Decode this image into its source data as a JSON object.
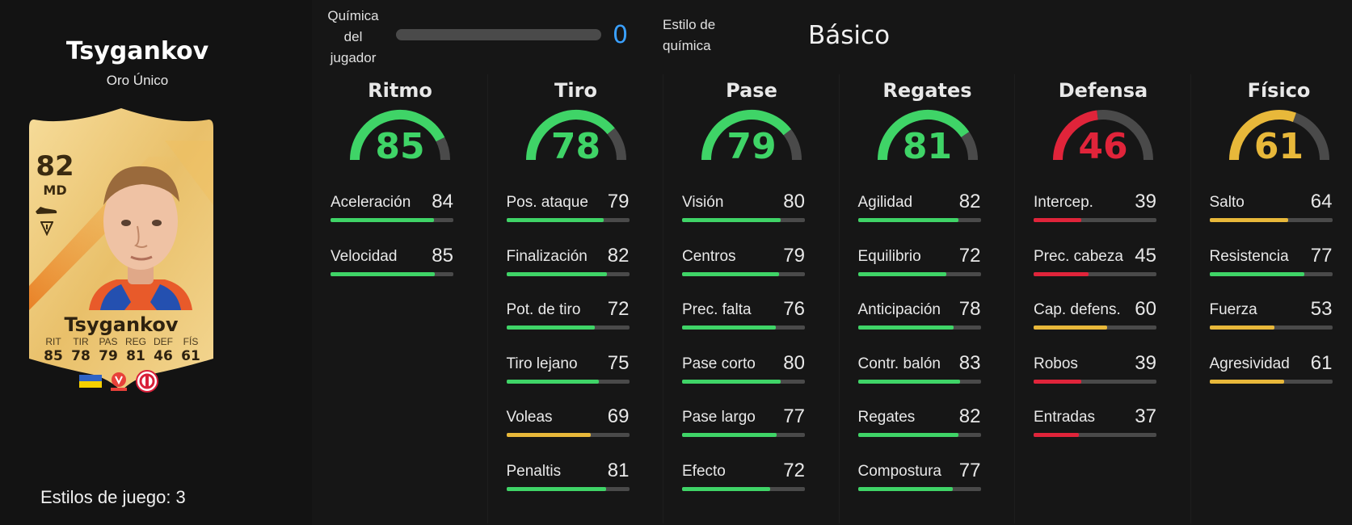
{
  "player": {
    "name": "Tsygankov",
    "rarity": "Oro Único",
    "rating": "82",
    "position": "MD",
    "card_name": "Tsygankov",
    "card_stats": [
      {
        "label": "RIT",
        "value": "85"
      },
      {
        "label": "TIR",
        "value": "78"
      },
      {
        "label": "PAS",
        "value": "79"
      },
      {
        "label": "REG",
        "value": "81"
      },
      {
        "label": "DEF",
        "value": "46"
      },
      {
        "label": "FÍS",
        "value": "61"
      }
    ],
    "playstyles_label": "Estilos de juego: 3"
  },
  "chemistry": {
    "label_lines": [
      "Química",
      "del",
      "jugador"
    ],
    "value": "0",
    "level": 0,
    "style_label_lines": [
      "Estilo de",
      "química"
    ],
    "style_value": "Básico",
    "value_color": "#3aa0ff"
  },
  "colors": {
    "green": "#3fd467",
    "red": "#e0243a",
    "yellow": "#e8b83a",
    "track": "#4a4a4a"
  },
  "categories": [
    {
      "title": "Ritmo",
      "value": 85,
      "color": "green",
      "stats": [
        {
          "label": "Aceleración",
          "value": 84,
          "color": "green"
        },
        {
          "label": "Velocidad",
          "value": 85,
          "color": "green"
        }
      ]
    },
    {
      "title": "Tiro",
      "value": 78,
      "color": "green",
      "stats": [
        {
          "label": "Pos. ataque",
          "value": 79,
          "color": "green"
        },
        {
          "label": "Finalización",
          "value": 82,
          "color": "green"
        },
        {
          "label": "Pot. de tiro",
          "value": 72,
          "color": "green"
        },
        {
          "label": "Tiro lejano",
          "value": 75,
          "color": "green"
        },
        {
          "label": "Voleas",
          "value": 69,
          "color": "yellow"
        },
        {
          "label": "Penaltis",
          "value": 81,
          "color": "green"
        }
      ]
    },
    {
      "title": "Pase",
      "value": 79,
      "color": "green",
      "stats": [
        {
          "label": "Visión",
          "value": 80,
          "color": "green"
        },
        {
          "label": "Centros",
          "value": 79,
          "color": "green"
        },
        {
          "label": "Prec. falta",
          "value": 76,
          "color": "green"
        },
        {
          "label": "Pase corto",
          "value": 80,
          "color": "green"
        },
        {
          "label": "Pase largo",
          "value": 77,
          "color": "green"
        },
        {
          "label": "Efecto",
          "value": 72,
          "color": "green"
        }
      ]
    },
    {
      "title": "Regates",
      "value": 81,
      "color": "green",
      "stats": [
        {
          "label": "Agilidad",
          "value": 82,
          "color": "green"
        },
        {
          "label": "Equilibrio",
          "value": 72,
          "color": "green"
        },
        {
          "label": "Anticipación",
          "value": 78,
          "color": "green"
        },
        {
          "label": "Contr. balón",
          "value": 83,
          "color": "green"
        },
        {
          "label": "Regates",
          "value": 82,
          "color": "green"
        },
        {
          "label": "Compostura",
          "value": 77,
          "color": "green"
        }
      ]
    },
    {
      "title": "Defensa",
      "value": 46,
      "color": "red",
      "stats": [
        {
          "label": "Intercep.",
          "value": 39,
          "color": "red"
        },
        {
          "label": "Prec. cabeza",
          "value": 45,
          "color": "red"
        },
        {
          "label": "Cap. defens.",
          "value": 60,
          "color": "yellow"
        },
        {
          "label": "Robos",
          "value": 39,
          "color": "red"
        },
        {
          "label": "Entradas",
          "value": 37,
          "color": "red"
        }
      ]
    },
    {
      "title": "Físico",
      "value": 61,
      "color": "yellow",
      "stats": [
        {
          "label": "Salto",
          "value": 64,
          "color": "yellow"
        },
        {
          "label": "Resistencia",
          "value": 77,
          "color": "green"
        },
        {
          "label": "Fuerza",
          "value": 53,
          "color": "yellow"
        },
        {
          "label": "Agresividad",
          "value": 61,
          "color": "yellow"
        }
      ]
    }
  ]
}
